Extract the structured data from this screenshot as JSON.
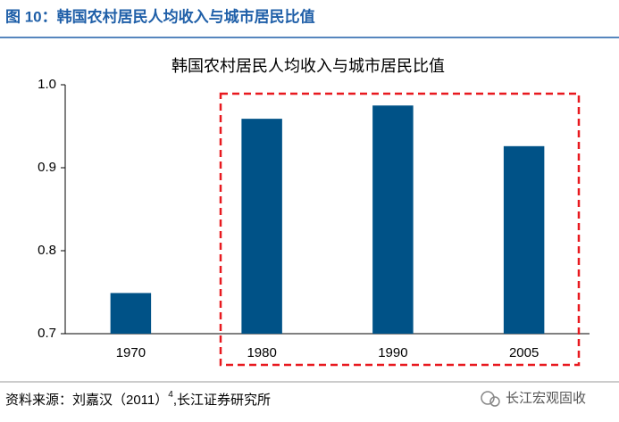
{
  "header": {
    "title": "图 10：韩国农村居民人均收入与城市居民比值"
  },
  "chart_data": {
    "type": "bar",
    "title": "韩国农村居民人均收入与城市居民比值",
    "categories": [
      "1970",
      "1980",
      "1990",
      "2005"
    ],
    "values": [
      0.749,
      0.959,
      0.975,
      0.926
    ],
    "color": "#005287",
    "ylim": [
      0.7,
      1.0
    ],
    "yticks": [
      0.7,
      0.8,
      0.9,
      {
        "value": 1,
        "label": "1.0"
      }
    ],
    "grid": false
  },
  "footer": {
    "source": "资料来源：刘嘉汉（2011）",
    "footnote": "4",
    "source_suffix": ",长江证券研究所",
    "watermark": "长江宏观固收"
  }
}
